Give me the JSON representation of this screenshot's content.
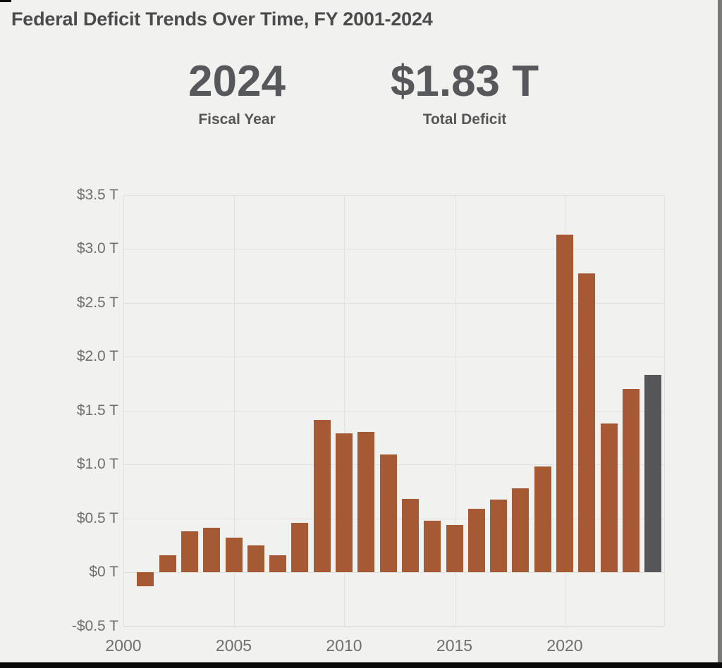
{
  "title": "Federal Deficit Trends Over Time, FY 2001-2024",
  "stats": {
    "fiscal_year": {
      "value": "2024",
      "label": "Fiscal Year"
    },
    "total_deficit": {
      "value": "$1.83 T",
      "label": "Total Deficit"
    }
  },
  "chart_data": {
    "type": "bar",
    "title": "Federal Deficit Trends Over Time, FY 2001-2024",
    "xlabel": "",
    "ylabel": "",
    "categories": [
      2001,
      2002,
      2003,
      2004,
      2005,
      2006,
      2007,
      2008,
      2009,
      2010,
      2011,
      2012,
      2013,
      2014,
      2015,
      2016,
      2017,
      2018,
      2019,
      2020,
      2021,
      2022,
      2023,
      2024
    ],
    "values": [
      -0.13,
      0.16,
      0.38,
      0.41,
      0.32,
      0.25,
      0.16,
      0.46,
      1.41,
      1.29,
      1.3,
      1.09,
      0.68,
      0.48,
      0.44,
      0.59,
      0.67,
      0.78,
      0.98,
      3.13,
      2.77,
      1.38,
      1.7,
      1.83
    ],
    "ylim": [
      -0.5,
      3.5
    ],
    "ytick_values": [
      3.5,
      3.0,
      2.5,
      2.0,
      1.5,
      1.0,
      0.5,
      0,
      -0.5
    ],
    "ytick_labels": [
      "$3.5 T",
      "$3.0 T",
      "$2.5 T",
      "$2.0 T",
      "$1.5 T",
      "$1.0 T",
      "$0.5 T",
      "$0 T",
      "-$0.5 T"
    ],
    "xtick_values": [
      2000,
      2005,
      2010,
      2015,
      2020
    ],
    "xtick_labels": [
      "2000",
      "2005",
      "2010",
      "2015",
      "2020"
    ],
    "grid": true,
    "legend": "none",
    "bar_color": "#A55A33",
    "highlight_category": 2024,
    "highlight_color": "#555659",
    "selected_year": "2024",
    "selected_value": "$1.83 T"
  },
  "colors": {
    "background": "#F1F1F0",
    "title_text": "#4B4B4B",
    "stat_value_text": "#56585B",
    "stat_label_text": "#565656",
    "axis_text": "#6E6E6E",
    "gridline": "#E2E1E0",
    "bar": "#A55A33",
    "highlight_bar": "#555659",
    "frame_bottom": "#0A0A0A",
    "frame_right": "#7A7A7A"
  }
}
